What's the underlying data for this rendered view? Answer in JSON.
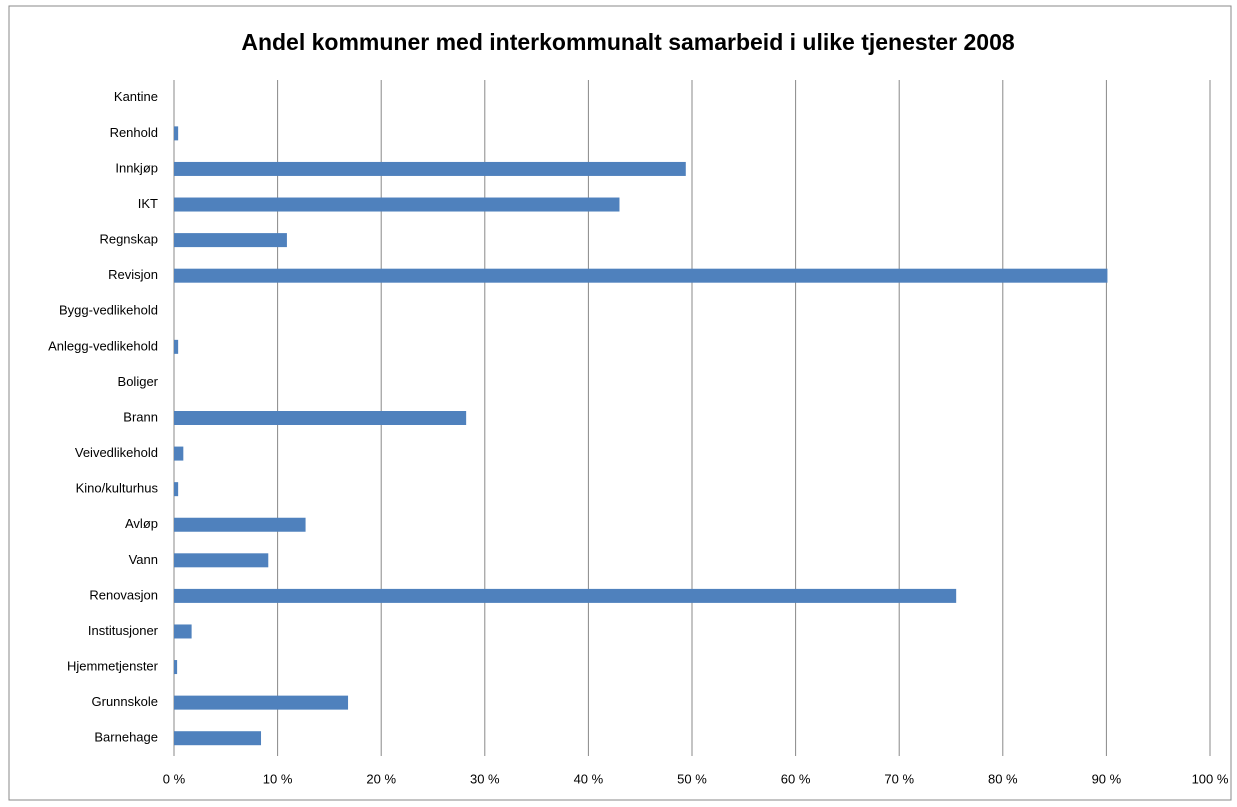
{
  "chart_data": {
    "type": "bar",
    "orientation": "horizontal",
    "title": "Andel kommuner med interkommunalt samarbeid i ulike tjenester 2008",
    "categories": [
      "Kantine",
      "Renhold",
      "Innkjøp",
      "IKT",
      "Regnskap",
      "Revisjon",
      "Bygg-vedlikehold",
      "Anlegg-vedlikehold",
      "Boliger",
      "Brann",
      "Veivedlikehold",
      "Kino/kulturhus",
      "Avløp",
      "Vann",
      "Renovasjon",
      "Institusjoner",
      "Hjemmetjenster",
      "Grunnskole",
      "Barnehage"
    ],
    "values": [
      0,
      0.4,
      49.4,
      43,
      10.9,
      90.1,
      0,
      0.4,
      0,
      28.2,
      0.9,
      0.4,
      12.7,
      9.1,
      75.5,
      1.7,
      0.3,
      16.8,
      8.4
    ],
    "color": "#4f81bd",
    "xlim": [
      0,
      100
    ],
    "xticks": [
      {
        "value": 0,
        "label": "0 %"
      },
      {
        "value": 10,
        "label": "10 %"
      },
      {
        "value": 20,
        "label": "20 %"
      },
      {
        "value": 30,
        "label": "30 %"
      },
      {
        "value": 40,
        "label": "40 %"
      },
      {
        "value": 50,
        "label": "50 %"
      },
      {
        "value": 60,
        "label": "60 %"
      },
      {
        "value": 70,
        "label": "70 %"
      },
      {
        "value": 80,
        "label": "80 %"
      },
      {
        "value": 90,
        "label": "90 %"
      },
      {
        "value": 100,
        "label": "100 %"
      }
    ],
    "grid": true
  }
}
